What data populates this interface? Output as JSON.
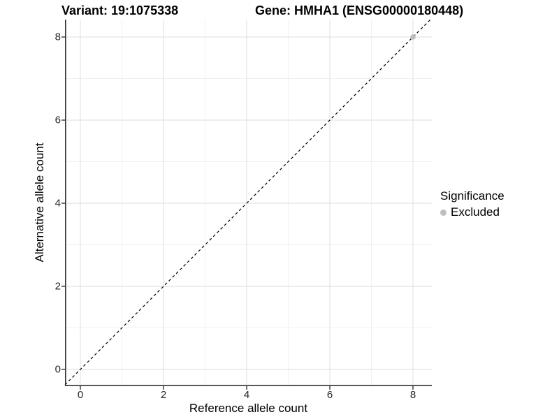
{
  "chart_data": {
    "type": "scatter",
    "title_left": "Variant: 19:1075338",
    "title_right": "Gene: HMHA1 (ENSG00000180448)",
    "xlabel": "Reference allele count",
    "ylabel": "Alternative allele count",
    "xlim": [
      -0.37,
      8.45
    ],
    "ylim": [
      -0.4,
      8.42
    ],
    "x_major_ticks": [
      0,
      2,
      4,
      6,
      8
    ],
    "x_minor_ticks": [
      1,
      3,
      5,
      7
    ],
    "y_major_ticks": [
      0,
      2,
      4,
      6,
      8
    ],
    "y_minor_ticks": [
      1,
      3,
      5,
      7
    ],
    "grid": true,
    "identity_line": {
      "style": "dashed",
      "from": [
        -0.37,
        -0.37
      ],
      "to": [
        8.42,
        8.42
      ],
      "color": "#000000"
    },
    "series": [
      {
        "name": "Excluded",
        "color": "#bebebe",
        "points": [
          [
            8,
            8
          ]
        ]
      }
    ],
    "legend": {
      "title": "Significance",
      "position": "right",
      "items": [
        {
          "label": "Excluded",
          "color": "#bebebe"
        }
      ]
    },
    "colors": {
      "background": "#ffffff",
      "grid_major": "#e4e4e4",
      "grid_minor": "#f0f0f0",
      "axis_line": "#333333",
      "tick_label": "#262626"
    }
  }
}
